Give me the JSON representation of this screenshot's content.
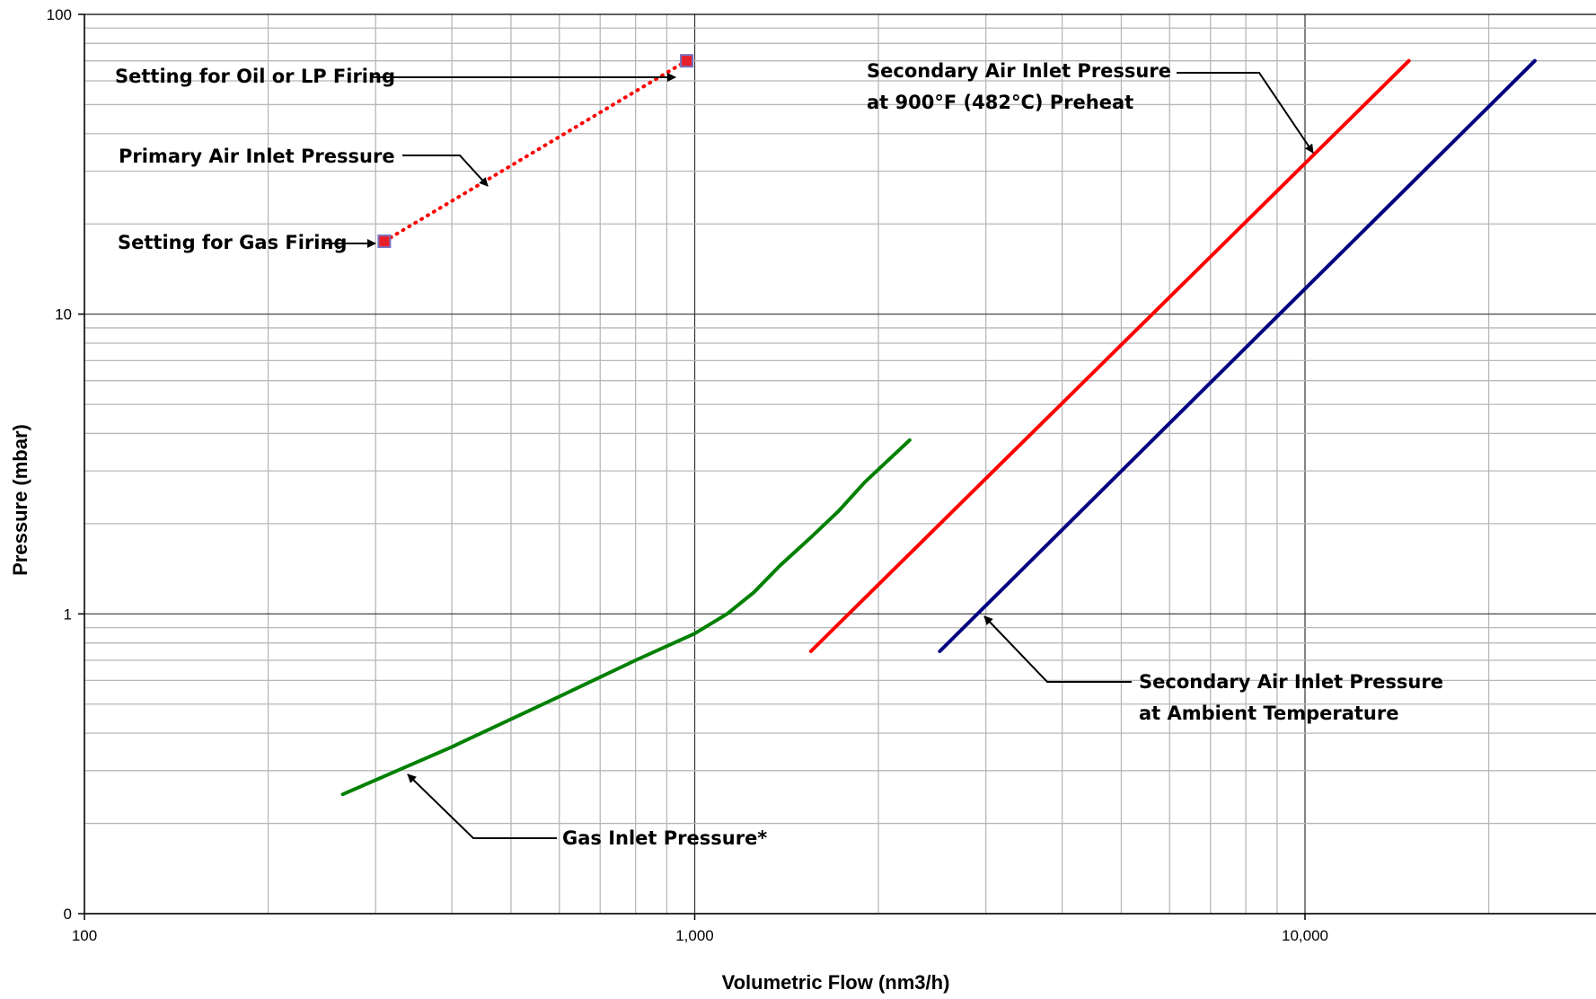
{
  "chart_data": {
    "type": "line",
    "title": "",
    "xlabel": "Volumetric Flow (nm3/h)",
    "ylabel": "Pressure (mbar)",
    "x_scale": "log",
    "y_scale": "log",
    "xlim": [
      100,
      40000
    ],
    "ylim": [
      0.1,
      100
    ],
    "x_ticks": [
      {
        "value": 100,
        "label": "100"
      },
      {
        "value": 1000,
        "label": "1,000"
      },
      {
        "value": 10000,
        "label": "10,000"
      }
    ],
    "y_ticks": [
      {
        "value": 0.1,
        "label": "0"
      },
      {
        "value": 1,
        "label": "1"
      },
      {
        "value": 10,
        "label": "10"
      },
      {
        "value": 100,
        "label": "100"
      }
    ],
    "grid": true,
    "legend": "none",
    "series": [
      {
        "color": "#FF0000",
        "style": "dotted",
        "markers": "square",
        "marker_color": "#E8202A",
        "marker_edge": "#7A70C0",
        "points": [
          [
            310,
            17.5
          ],
          [
            970,
            70
          ]
        ]
      },
      {
        "color": "#FF0000",
        "style": "solid",
        "points": [
          [
            1550,
            0.75
          ],
          [
            14800,
            70
          ]
        ]
      },
      {
        "color": "#000080",
        "style": "solid",
        "points": [
          [
            2520,
            0.75
          ],
          [
            23800,
            70
          ]
        ]
      },
      {
        "color": "#008000",
        "style": "solid",
        "points": [
          [
            265,
            0.25
          ],
          [
            400,
            0.36
          ],
          [
            600,
            0.53
          ],
          [
            800,
            0.7
          ],
          [
            1000,
            0.86
          ],
          [
            1130,
            1.0
          ],
          [
            1250,
            1.18
          ],
          [
            1380,
            1.45
          ],
          [
            1550,
            1.8
          ],
          [
            1720,
            2.2
          ],
          [
            1900,
            2.75
          ],
          [
            2250,
            3.8
          ]
        ]
      }
    ],
    "annotations": [
      {
        "id": "oil-lp",
        "lines": [
          "Setting for Oil or LP Firing"
        ]
      },
      {
        "id": "primary",
        "lines": [
          "Primary Air Inlet Pressure"
        ]
      },
      {
        "id": "gas-firing",
        "lines": [
          "Setting for Gas Firing"
        ]
      },
      {
        "id": "secondary-preheat",
        "lines": [
          "Secondary Air Inlet Pressure",
          "at 900°F (482°C) Preheat"
        ]
      },
      {
        "id": "secondary-ambient",
        "lines": [
          "Secondary Air Inlet Pressure",
          "at Ambient Temperature"
        ]
      },
      {
        "id": "gas-inlet",
        "lines": [
          "Gas Inlet Pressure*"
        ]
      }
    ]
  }
}
